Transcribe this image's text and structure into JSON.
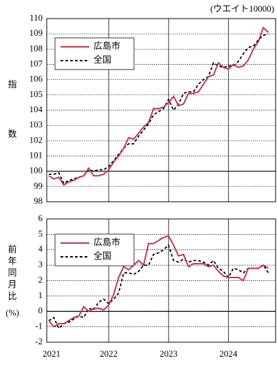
{
  "chart_data": [
    {
      "type": "line",
      "note_label": "(ウエイト10000)",
      "y_label": "指数",
      "ylim": [
        98,
        110
      ],
      "yticks": [
        98,
        99,
        100,
        101,
        102,
        103,
        104,
        105,
        106,
        107,
        108,
        109,
        110
      ],
      "baseline": 100,
      "grid": true,
      "legend": "upper left",
      "series": [
        {
          "name": "広島市",
          "color": "#c0364a",
          "dash": false,
          "values": [
            99.7,
            99.5,
            99.6,
            99.1,
            99.3,
            99.4,
            99.6,
            99.7,
            100.2,
            99.7,
            99.7,
            99.8,
            100.1,
            100.6,
            101.0,
            101.5,
            102.2,
            102.1,
            102.5,
            102.9,
            103.2,
            104.1,
            104.1,
            104.2,
            104.5,
            104.9,
            104.3,
            104.4,
            105.1,
            105.1,
            105.2,
            105.7,
            106.2,
            106.3,
            107.1,
            106.8,
            106.7,
            107.0,
            106.8,
            106.9,
            107.3,
            108.0,
            108.5,
            109.4,
            109.1
          ]
        },
        {
          "name": "全国",
          "color": "#000000",
          "dash": true,
          "values": [
            99.8,
            99.8,
            99.9,
            99.2,
            99.4,
            99.5,
            99.6,
            99.7,
            100.1,
            100.0,
            100.1,
            100.1,
            100.3,
            100.7,
            101.1,
            101.5,
            101.8,
            101.8,
            102.3,
            102.7,
            103.1,
            103.7,
            103.9,
            104.1,
            104.7,
            104.0,
            104.4,
            105.1,
            105.2,
            105.2,
            105.7,
            106.0,
            106.2,
            107.1,
            106.9,
            106.8,
            106.9,
            106.9,
            107.2,
            107.7,
            108.1,
            108.2,
            108.6,
            108.9,
            109.0
          ]
        }
      ]
    },
    {
      "type": "line",
      "y_label": "前年同月比",
      "y_unit": "(%)",
      "categories": [
        "2021",
        null,
        null,
        null,
        null,
        null,
        null,
        null,
        null,
        null,
        null,
        null,
        "2022",
        null,
        null,
        null,
        null,
        null,
        null,
        null,
        null,
        null,
        null,
        null,
        "2023",
        null,
        null,
        null,
        null,
        null,
        null,
        null,
        null,
        null,
        null,
        null,
        "2024",
        null,
        null,
        null,
        null,
        null,
        null,
        null,
        null
      ],
      "ylim": [
        -2,
        6
      ],
      "yticks": [
        -2,
        -1,
        0,
        1,
        2,
        3,
        4,
        5,
        6
      ],
      "baseline": 0,
      "grid": true,
      "legend": "upper left",
      "series": [
        {
          "name": "広島市",
          "color": "#c0364a",
          "dash": false,
          "values": [
            -0.6,
            -1.0,
            -0.8,
            -0.8,
            -0.6,
            -0.4,
            -0.3,
            0.3,
            0.0,
            0.2,
            0.2,
            0.1,
            0.4,
            1.1,
            2.2,
            2.9,
            2.7,
            3.0,
            3.3,
            3.0,
            4.4,
            4.4,
            4.6,
            4.8,
            4.9,
            4.3,
            3.6,
            3.7,
            2.9,
            3.1,
            3.1,
            3.1,
            2.9,
            3.0,
            2.6,
            2.3,
            2.2,
            2.2,
            2.2,
            2.0,
            2.8,
            2.8,
            2.8,
            3.0,
            2.8
          ]
        },
        {
          "name": "全国",
          "color": "#000000",
          "dash": true,
          "values": [
            -0.6,
            -0.4,
            -1.1,
            -0.8,
            -0.7,
            -0.5,
            -0.3,
            -0.4,
            0.2,
            0.1,
            0.6,
            0.8,
            0.5,
            0.8,
            1.2,
            2.5,
            2.5,
            2.4,
            2.6,
            3.0,
            3.0,
            3.7,
            3.8,
            4.0,
            4.3,
            3.3,
            3.2,
            3.4,
            3.2,
            3.3,
            3.3,
            3.2,
            3.0,
            3.3,
            2.8,
            2.6,
            2.2,
            2.8,
            2.7,
            2.5,
            2.8,
            2.8,
            2.8,
            3.0,
            2.5
          ]
        }
      ]
    }
  ]
}
